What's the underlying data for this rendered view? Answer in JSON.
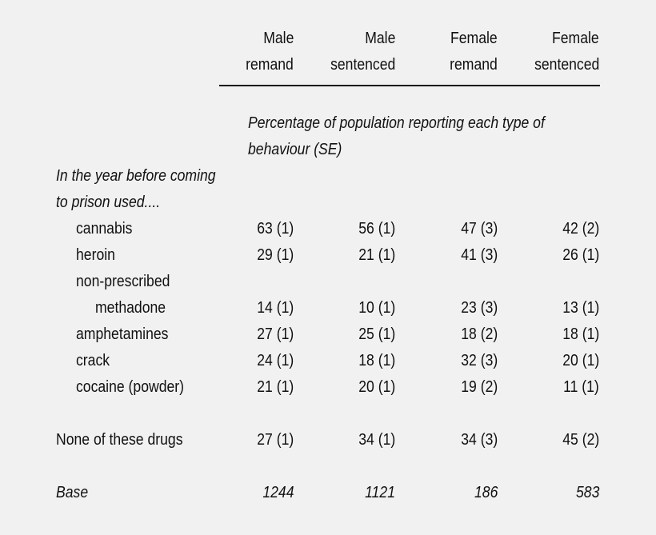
{
  "headers": [
    {
      "line1": "Male",
      "line2": "remand"
    },
    {
      "line1": "Male",
      "line2": "sentenced"
    },
    {
      "line1": "Female",
      "line2": "remand"
    },
    {
      "line1": "Female",
      "line2": "sentenced"
    }
  ],
  "caption": {
    "line1": "Percentage of population reporting each type of",
    "line2": "behaviour (SE)"
  },
  "section": {
    "line1": "In the year before coming",
    "line2": "to prison used...."
  },
  "rows": [
    {
      "label": "cannabis",
      "values": [
        "63 (1)",
        "56 (1)",
        "47 (3)",
        "42 (2)"
      ]
    },
    {
      "label": "heroin",
      "values": [
        "29 (1)",
        "21 (1)",
        "41 (3)",
        "26 (1)"
      ]
    },
    {
      "label": "non-prescribed",
      "label2": "methadone",
      "values": [
        "14 (1)",
        "10 (1)",
        "23 (3)",
        "13 (1)"
      ]
    },
    {
      "label": "amphetamines",
      "values": [
        "27 (1)",
        "25 (1)",
        "18 (2)",
        "18 (1)"
      ]
    },
    {
      "label": "crack",
      "values": [
        "24 (1)",
        "18 (1)",
        "32 (3)",
        "20 (1)"
      ]
    },
    {
      "label": "cocaine (powder)",
      "values": [
        "21 (1)",
        "20 (1)",
        "19 (2)",
        "11 (1)"
      ]
    }
  ],
  "none_row": {
    "label": "None of these drugs",
    "values": [
      "27 (1)",
      "34 (1)",
      "34 (3)",
      "45 (2)"
    ]
  },
  "base_row": {
    "label": "Base",
    "values": [
      "1244",
      "1121",
      "186",
      "583"
    ]
  }
}
